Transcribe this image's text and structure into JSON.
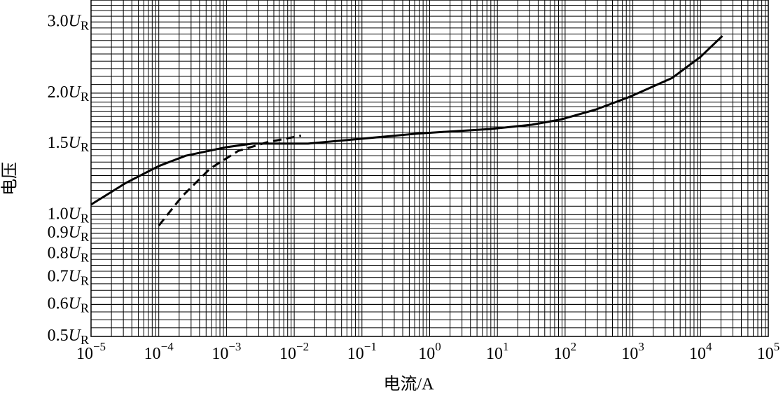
{
  "chart_data": {
    "type": "line",
    "x_label": "电流/A",
    "y_label": "电压",
    "y_unit": "U",
    "y_unit_sub": "R",
    "xlog": true,
    "ylog": true,
    "grid": true,
    "xlim": [
      1e-05,
      100000
    ],
    "ylim": [
      0.5,
      3.4
    ],
    "xticks": [
      {
        "value": 1e-05,
        "label": "10",
        "exponent": "−5"
      },
      {
        "value": 0.0001,
        "label": "10",
        "exponent": "−4"
      },
      {
        "value": 0.001,
        "label": "10",
        "exponent": "−3"
      },
      {
        "value": 0.01,
        "label": "10",
        "exponent": "−2"
      },
      {
        "value": 0.1,
        "label": "10",
        "exponent": "−1"
      },
      {
        "value": 1,
        "label": "10",
        "exponent": "0"
      },
      {
        "value": 10,
        "label": "10",
        "exponent": "1"
      },
      {
        "value": 100,
        "label": "10",
        "exponent": "2"
      },
      {
        "value": 1000,
        "label": "10",
        "exponent": "3"
      },
      {
        "value": 10000,
        "label": "10",
        "exponent": "4"
      },
      {
        "value": 100000,
        "label": "10",
        "exponent": "5"
      }
    ],
    "yticks": [
      0.5,
      0.6,
      0.7,
      0.8,
      0.9,
      {
        "value": 1,
        "label": "1.0"
      },
      1.5,
      {
        "value": 2,
        "label": "2.0"
      },
      {
        "value": 3,
        "label": "3.0"
      }
    ],
    "series": [
      {
        "color": "#000000",
        "dash": false,
        "x": [
          1e-05,
          3.3e-05,
          0.0001,
          0.00025,
          0.001,
          0.0024,
          0.016,
          0.72,
          7.8,
          32,
          85,
          280,
          910,
          3800,
          10000,
          21000
        ],
        "values": [
          1.06,
          1.2,
          1.32,
          1.4,
          1.47,
          1.5,
          1.5,
          1.59,
          1.63,
          1.67,
          1.72,
          1.82,
          1.96,
          2.18,
          2.46,
          2.77
        ]
      },
      {
        "color": "#000000",
        "dash": true,
        "x": [
          0.0001,
          0.00022,
          0.00057,
          0.0015,
          0.0039,
          0.0126
        ],
        "values": [
          0.94,
          1.11,
          1.3,
          1.44,
          1.51,
          1.57
        ]
      }
    ]
  }
}
